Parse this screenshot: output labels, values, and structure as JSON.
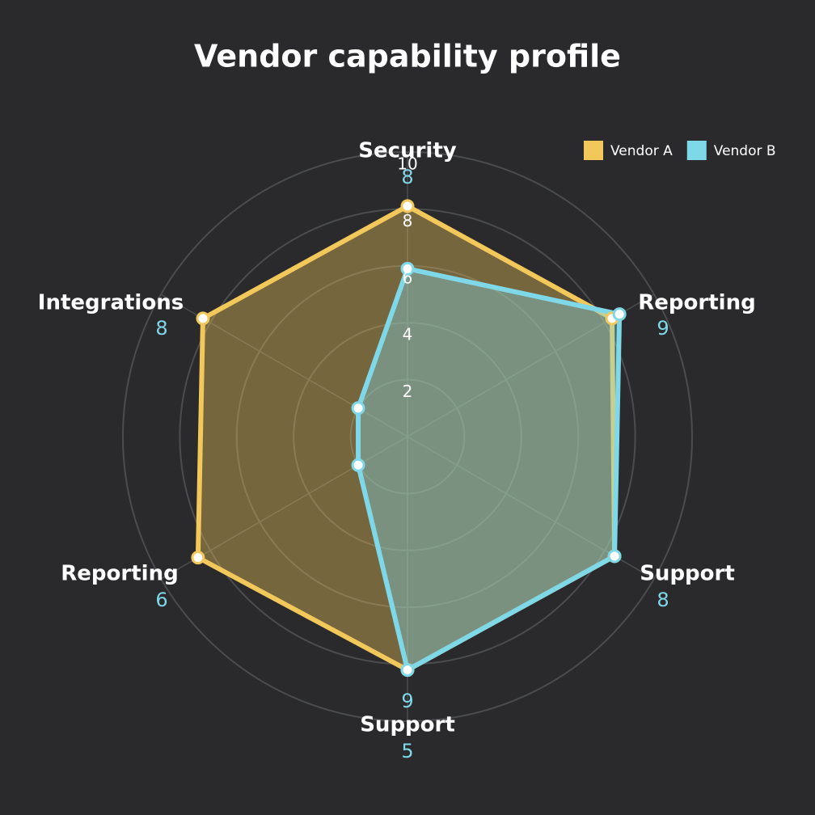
{
  "chart_data": {
    "type": "radar",
    "title": "Vendor capability profile",
    "categories": [
      "Security",
      "Reporting",
      "Support",
      "Support",
      "Reporting",
      "Integrations"
    ],
    "axis_scores": [
      [
        8
      ],
      [
        9
      ],
      [
        8
      ],
      [
        9,
        5
      ],
      [
        6
      ],
      [
        8
      ]
    ],
    "series": [
      {
        "name": "Vendor A",
        "color": "#f2c85b",
        "values": [
          8.1,
          8.3,
          8.4,
          8.2,
          8.5,
          8.3
        ]
      },
      {
        "name": "Vendor B",
        "color": "#7fd8e8",
        "values": [
          5.9,
          8.6,
          8.4,
          8.2,
          2,
          2
        ]
      }
    ],
    "ylim": [
      0,
      10
    ],
    "yticks": [
      2,
      4,
      6,
      8,
      10
    ],
    "grid": true,
    "legend": "top-right"
  }
}
